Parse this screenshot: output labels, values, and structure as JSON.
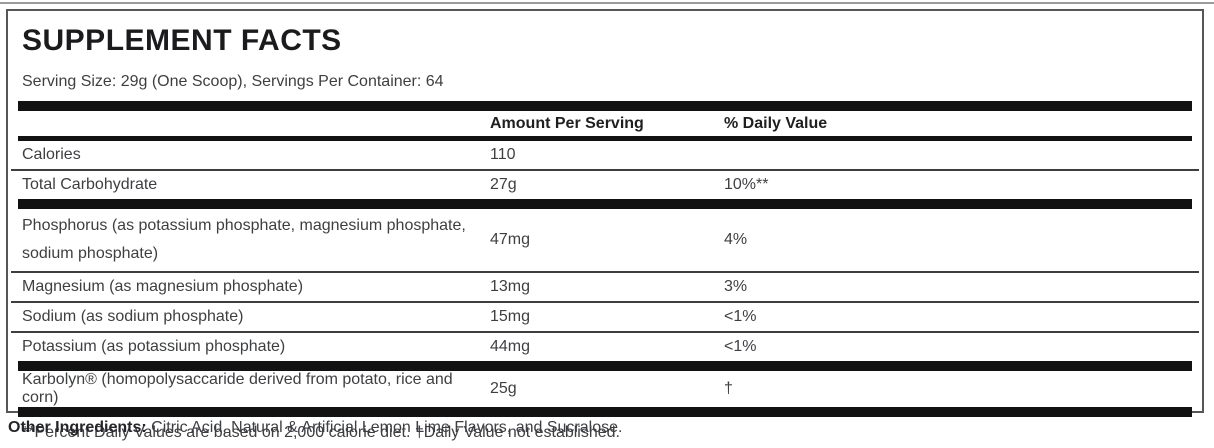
{
  "title": "SUPPLEMENT FACTS",
  "serving_info": "Serving Size: 29g (One Scoop), Servings Per Container: 64",
  "table": {
    "columns": {
      "amount": "Amount Per Serving",
      "daily_value": "% Daily Value"
    },
    "rows": [
      {
        "label": "Calories",
        "amount": "110",
        "daily_value": ""
      },
      {
        "label": "Total Carbohydrate",
        "amount": "27g",
        "daily_value": "10%**"
      },
      {
        "label": "Phosphorus (as potassium phosphate, magnesium phosphate, sodium phosphate)",
        "amount": "47mg",
        "daily_value": "4%"
      },
      {
        "label": "Magnesium (as magnesium phosphate)",
        "amount": "13mg",
        "daily_value": "3%"
      },
      {
        "label": "Sodium (as sodium phosphate)",
        "amount": "15mg",
        "daily_value": "<1%"
      },
      {
        "label": "Potassium (as potassium phosphate)",
        "amount": "44mg",
        "daily_value": "<1%"
      },
      {
        "label": "Karbolyn® (homopolysaccaride derived from potato, rice and corn)",
        "amount": "25g",
        "daily_value": "†"
      }
    ],
    "footnote": "**Percent Daily Values are based on 2,000 calorie diet. †Daily Value not established."
  },
  "other_ingredients": {
    "label": "Other Ingredients:",
    "text": " Citric Acid, Natural & Artificial Lemon Lime Flavors, and Sucralose."
  },
  "colors": {
    "bar": "#121212",
    "border": "#55575b",
    "text": "#3d3f42"
  }
}
